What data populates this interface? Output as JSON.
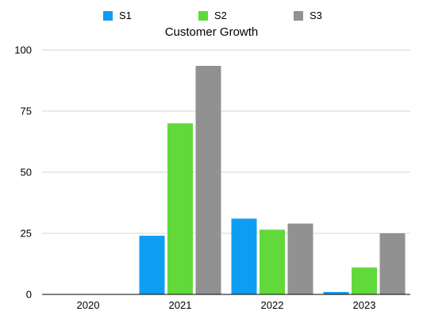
{
  "chart_data": {
    "type": "bar",
    "title": "Customer Growth",
    "xlabel": "",
    "ylabel": "",
    "categories": [
      "2020",
      "2021",
      "2022",
      "2023"
    ],
    "series": [
      {
        "name": "S1",
        "color": "#0f9df4",
        "values": [
          0,
          24,
          31,
          1
        ]
      },
      {
        "name": "S2",
        "color": "#62d93a",
        "values": [
          0,
          70,
          26.5,
          11
        ]
      },
      {
        "name": "S3",
        "color": "#919191",
        "values": [
          0,
          93.5,
          29,
          25
        ]
      }
    ],
    "ylim": [
      0,
      100
    ],
    "yticks": [
      "0",
      "25",
      "50",
      "75",
      "100"
    ],
    "grid": true,
    "legend_position": "top"
  }
}
